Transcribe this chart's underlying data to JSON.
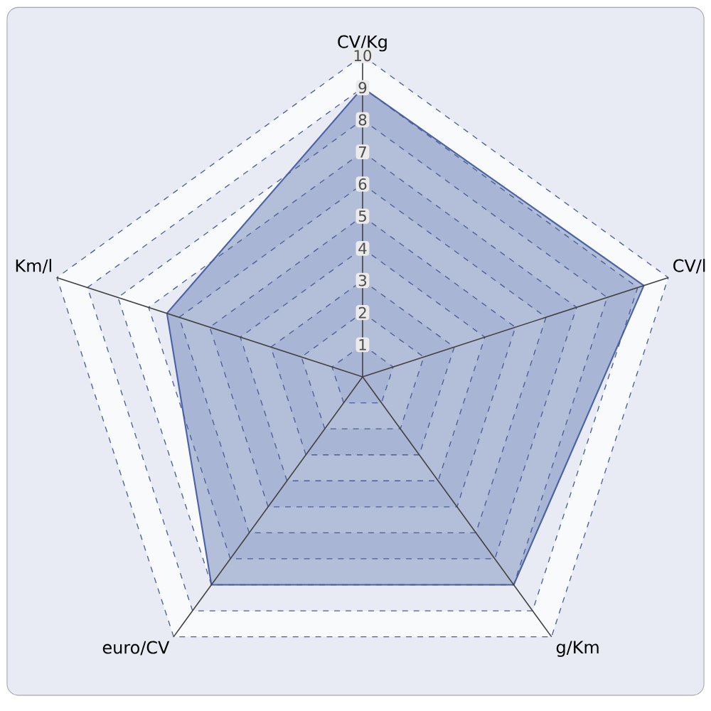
{
  "chart_data": {
    "type": "radar",
    "categories": [
      "CV/Kg",
      "CV/l",
      "g/Km",
      "euro/CV",
      "Km/l"
    ],
    "series": [
      {
        "color": "#4a63a6",
        "values": [
          9,
          9.2,
          8,
          8,
          6.4
        ]
      }
    ],
    "ylim": [
      0,
      10
    ],
    "yticks": [
      1,
      2,
      3,
      4,
      5,
      6,
      7,
      8,
      9,
      10
    ],
    "grid": true
  }
}
